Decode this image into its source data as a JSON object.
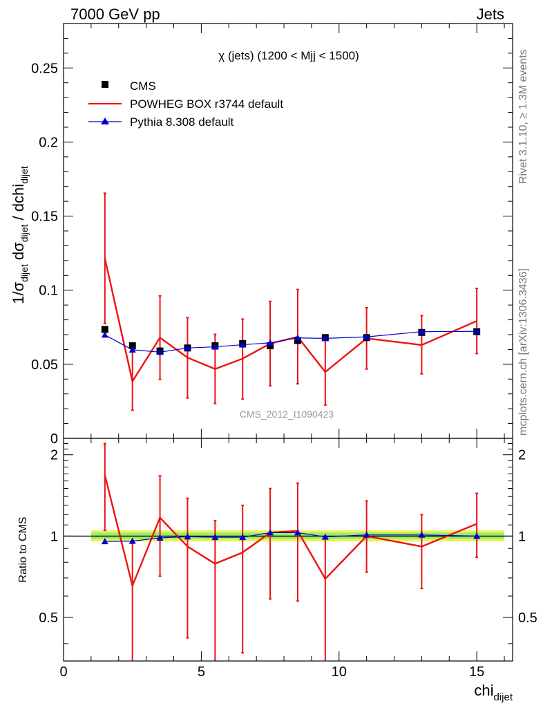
{
  "header": {
    "left": "7000 GeV pp",
    "right": "Jets"
  },
  "side_labels": {
    "rivet": "Rivet 3.1.10, ≥ 1.3M events",
    "mcplots": "mcplots.cern.ch [arXiv:1306.3436]"
  },
  "watermark": "CMS_2012_I1090423",
  "chart_data": [
    {
      "type": "line",
      "panel": "main",
      "title": "χ (jets) (1200 < Mjj < 1500)",
      "xlabel": "chi",
      "xlabel_sub": "dijet",
      "ylabel": "1/σ_dijet dσ_dijet / dchi_dijet",
      "xlim": [
        0,
        16.3
      ],
      "ylim": [
        0,
        0.28
      ],
      "x_ticks": [
        0,
        5,
        10,
        15
      ],
      "y_ticks": [
        0,
        0.05,
        0.1,
        0.15,
        0.2,
        0.25
      ],
      "y_tick_labels": [
        "0",
        "0.05",
        "0.1",
        "0.15",
        "0.2",
        "0.25"
      ],
      "legend_position": "top-left",
      "x": [
        1.5,
        2.5,
        3.5,
        4.5,
        5.5,
        6.5,
        7.5,
        8.5,
        9.5,
        11,
        13,
        15
      ],
      "series": [
        {
          "name": "CMS",
          "style": "markers",
          "marker": "square",
          "color": "#000000",
          "values": [
            0.0735,
            0.0625,
            0.059,
            0.061,
            0.0625,
            0.064,
            0.0625,
            0.066,
            0.068,
            0.068,
            0.0715,
            0.072
          ]
        },
        {
          "name": "POWHEG BOX r3744 default",
          "style": "line",
          "color": "#ee1111",
          "values": [
            0.1215,
            0.0385,
            0.068,
            0.0545,
            0.0468,
            0.0538,
            0.064,
            0.0685,
            0.0448,
            0.0675,
            0.063,
            0.0792
          ],
          "err_lo": [
            0.0775,
            0.019,
            0.0398,
            0.0272,
            0.0235,
            0.0265,
            0.0355,
            0.0368,
            0.0225,
            0.0468,
            0.0435,
            0.0572
          ],
          "err_hi": [
            0.1655,
            0.0585,
            0.0962,
            0.0815,
            0.0702,
            0.0805,
            0.0925,
            0.1005,
            0.0672,
            0.0882,
            0.0828,
            0.1012
          ]
        },
        {
          "name": "Pythia 8.308 default",
          "style": "line-markers",
          "marker": "triangle",
          "color": "#0000cc",
          "values": [
            0.0698,
            0.0598,
            0.0582,
            0.061,
            0.0618,
            0.0632,
            0.0645,
            0.0678,
            0.0675,
            0.0685,
            0.072,
            0.0722
          ]
        }
      ]
    },
    {
      "type": "line",
      "panel": "ratio",
      "ylabel": "Ratio to CMS",
      "xlim": [
        0,
        16.3
      ],
      "ylim": [
        0.345,
        2.3
      ],
      "scale": "log",
      "x_ticks": [
        0,
        5,
        10,
        15
      ],
      "x_tick_labels": [
        "0",
        "5",
        "10",
        "15"
      ],
      "y_ticks": [
        0.5,
        1,
        2
      ],
      "y_tick_labels": [
        "0.5",
        "1",
        "2"
      ],
      "x": [
        1.5,
        2.5,
        3.5,
        4.5,
        5.5,
        6.5,
        7.5,
        8.5,
        9.5,
        11,
        13,
        15
      ],
      "reference_band": {
        "x_range": [
          1.0,
          16.0
        ],
        "outer": [
          0.955,
          1.05
        ],
        "inner": [
          0.975,
          1.03
        ],
        "outer_color": "#f0f060",
        "inner_color": "#99ee66"
      },
      "series": [
        {
          "name": "POWHEG BOX r3744 default",
          "color": "#ee1111",
          "values": [
            1.68,
            0.655,
            1.17,
            0.915,
            0.79,
            0.87,
            1.03,
            1.045,
            0.695,
            1.0,
            0.915,
            1.11
          ],
          "err_lo": [
            1.05,
            0.33,
            0.71,
            0.42,
            0.33,
            0.37,
            0.585,
            0.575,
            0.33,
            0.735,
            0.64,
            0.835
          ],
          "err_hi": [
            2.2,
            0.96,
            1.67,
            1.38,
            1.14,
            1.3,
            1.5,
            1.57,
            0.995,
            1.35,
            1.2,
            1.44
          ]
        },
        {
          "name": "Pythia 8.308 default",
          "color": "#0000cc",
          "marker": "triangle",
          "values": [
            0.955,
            0.958,
            0.985,
            0.995,
            0.99,
            0.99,
            1.03,
            1.03,
            0.993,
            1.01,
            1.01,
            1.0
          ]
        }
      ]
    }
  ]
}
